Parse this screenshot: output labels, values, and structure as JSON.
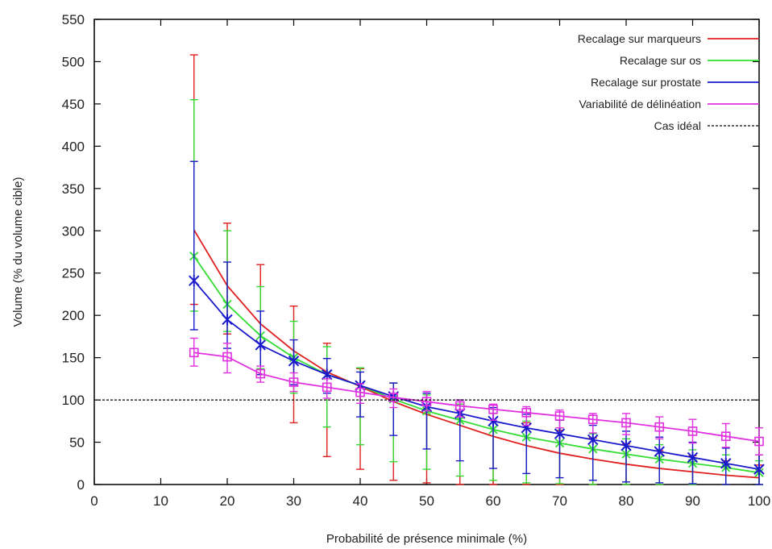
{
  "chart_data": {
    "type": "line",
    "xlabel": "Probabilité de présence minimale (%)",
    "ylabel": "Volume (% du volume cible)",
    "xlim": [
      0,
      100
    ],
    "ylim": [
      0,
      550
    ],
    "xticks": [
      0,
      10,
      20,
      30,
      40,
      50,
      60,
      70,
      80,
      90,
      100
    ],
    "yticks": [
      0,
      50,
      100,
      150,
      200,
      250,
      300,
      350,
      400,
      450,
      500,
      550
    ],
    "grid": false,
    "legend_position": "top-right",
    "x": [
      15,
      20,
      25,
      30,
      35,
      40,
      45,
      50,
      55,
      60,
      65,
      70,
      75,
      80,
      85,
      90,
      95,
      100
    ],
    "series": [
      {
        "name": "Recalage  sur marqueurs",
        "color": "#e02020",
        "marker": "none",
        "values": [
          301,
          235,
          190,
          158,
          133,
          116,
          98,
          83,
          70,
          57,
          46,
          37,
          30,
          24,
          19,
          15,
          11,
          8
        ],
        "err_low": [
          213,
          178,
          130,
          73,
          33,
          18,
          5,
          2,
          0,
          0,
          0,
          0,
          0,
          0,
          0,
          0,
          0,
          0
        ],
        "err_high": [
          508,
          309,
          260,
          211,
          167,
          137,
          120,
          108,
          95,
          84,
          73,
          64,
          55,
          48,
          40,
          34,
          28,
          23
        ]
      },
      {
        "name": "Recalage sur os",
        "color": "#33dd33",
        "marker": "x",
        "values": [
          270,
          213,
          176,
          150,
          130,
          117,
          101,
          87,
          76,
          65,
          56,
          49,
          42,
          36,
          30,
          25,
          20,
          14
        ],
        "err_low": [
          205,
          181,
          137,
          108,
          68,
          47,
          27,
          18,
          10,
          5,
          2,
          1,
          0,
          0,
          0,
          0,
          0,
          0
        ],
        "err_high": [
          455,
          300,
          234,
          193,
          163,
          138,
          120,
          106,
          95,
          84,
          75,
          67,
          60,
          54,
          47,
          41,
          35,
          28
        ]
      },
      {
        "name": "Recalage sur prostate",
        "color": "#1a1acc",
        "marker": "asterisk",
        "values": [
          241,
          195,
          165,
          146,
          130,
          117,
          104,
          92,
          84,
          75,
          67,
          60,
          53,
          46,
          39,
          32,
          25,
          18
        ],
        "err_low": [
          183,
          161,
          130,
          118,
          108,
          80,
          58,
          42,
          28,
          19,
          13,
          8,
          5,
          3,
          2,
          1,
          0,
          0
        ],
        "err_high": [
          382,
          263,
          205,
          171,
          149,
          133,
          120,
          108,
          100,
          91,
          83,
          76,
          70,
          63,
          56,
          50,
          43,
          35
        ]
      },
      {
        "name": "Variabilité de délinéation",
        "color": "#e030e0",
        "marker": "square",
        "values": [
          156,
          151,
          131,
          121,
          115,
          109,
          103,
          98,
          93,
          89,
          85,
          81,
          77,
          73,
          68,
          63,
          57,
          51
        ],
        "err_low": [
          140,
          132,
          121,
          110,
          102,
          96,
          91,
          87,
          80,
          76,
          70,
          67,
          61,
          59,
          54,
          49,
          44,
          35
        ],
        "err_high": [
          173,
          167,
          140,
          132,
          125,
          119,
          113,
          110,
          100,
          95,
          92,
          88,
          84,
          84,
          80,
          77,
          72,
          67
        ]
      },
      {
        "name": "Cas idéal",
        "color": "#000000",
        "marker": "none",
        "dashed": true,
        "x": [
          0,
          100
        ],
        "values": [
          100,
          100
        ]
      }
    ]
  }
}
